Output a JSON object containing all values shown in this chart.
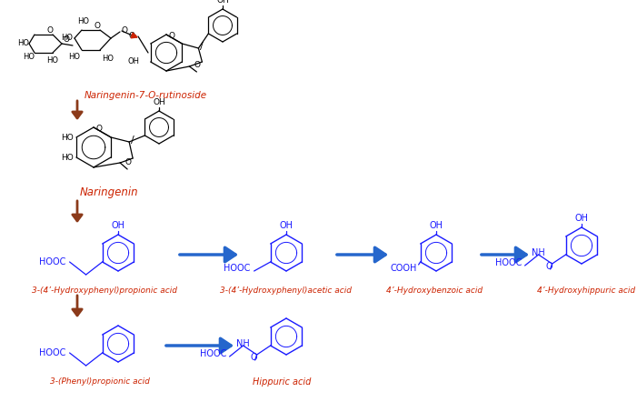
{
  "bg_color": "#ffffff",
  "red_color": "#cc2200",
  "arrow_brown": "#8B3A1A",
  "arrow_blue": "#2566CC",
  "labels": {
    "naringenin_rutinoside": "Naringenin-7-O-rutinoside",
    "naringenin": "Naringenin",
    "hydroxy_propionic": "3-(4’-Hydroxyphenyl)propionic acid",
    "hydroxy_acetic": "3-(4’-Hydroxyphenyl)acetic acid",
    "hydroxybenzoic": "4’-Hydroxybenzoic acid",
    "hydroxyhippuric": "4’-Hydroxyhippuric acid",
    "phenyl_propionic": "3-(Phenyl)propionic acid",
    "hippuric": "Hippuric acid"
  },
  "label_fontsize": 7.0,
  "label_fontsize_small": 6.5
}
